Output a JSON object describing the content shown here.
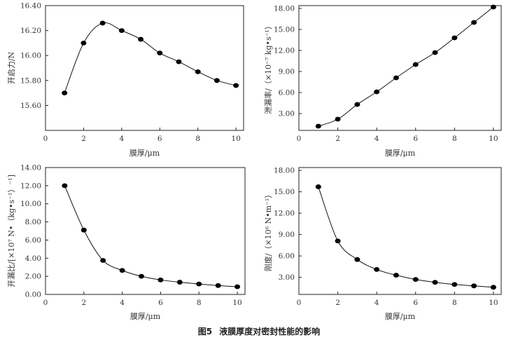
{
  "caption": {
    "number": "图5",
    "text": "液膜厚度对密封性能的影响"
  },
  "chart_data": [
    {
      "type": "line",
      "xlabel": "膜厚/μm",
      "ylabel": "开启力/N",
      "xlim": [
        0,
        10.4
      ],
      "ylim": [
        15.4,
        16.4
      ],
      "xticks": [
        0,
        2,
        4,
        6,
        8,
        10
      ],
      "xtick_labels": [
        "0",
        "2",
        "4",
        "6",
        "8",
        "10"
      ],
      "yticks": [
        15.6,
        15.8,
        16.0,
        16.2,
        16.4
      ],
      "ytick_labels": [
        "15.60",
        "15.80",
        "16.00",
        "16.20",
        "16.40"
      ],
      "x": [
        1,
        2,
        3,
        4,
        5,
        6,
        7,
        8,
        9,
        10
      ],
      "y": [
        15.7,
        16.1,
        16.26,
        16.2,
        16.13,
        16.02,
        15.95,
        15.87,
        15.8,
        15.76
      ]
    },
    {
      "type": "line",
      "xlabel": "膜厚/μm",
      "ylabel": "泄漏率/（×10⁻⁷ kg•s⁻¹）",
      "xlim": [
        0,
        10.4
      ],
      "ylim": [
        0.6,
        18.4
      ],
      "xticks": [
        0,
        2,
        4,
        6,
        8,
        10
      ],
      "xtick_labels": [
        "0",
        "2",
        "4",
        "6",
        "8",
        "10"
      ],
      "yticks": [
        3,
        6,
        9,
        12,
        15,
        18
      ],
      "ytick_labels": [
        "3.00",
        "6.00",
        "9.00",
        "12.00",
        "15.00",
        "18.00"
      ],
      "x": [
        1,
        2,
        3,
        4,
        5,
        6,
        7,
        8,
        9,
        10
      ],
      "y": [
        1.2,
        2.2,
        4.3,
        6.1,
        8.1,
        10.0,
        11.7,
        13.8,
        16.0,
        18.2
      ]
    },
    {
      "type": "line",
      "xlabel": "膜厚/μm",
      "ylabel": "开漏比/[×10⁷ N•（kg•s⁻¹）⁻¹]",
      "xlim": [
        0,
        10.4
      ],
      "ylim": [
        0,
        14
      ],
      "xticks": [
        0,
        2,
        4,
        6,
        8,
        10
      ],
      "xtick_labels": [
        "0",
        "2",
        "4",
        "6",
        "8",
        "10"
      ],
      "yticks": [
        0,
        2,
        4,
        6,
        8,
        10,
        12,
        14
      ],
      "ytick_labels": [
        "0.00",
        "2.00",
        "4.00",
        "6.00",
        "8.00",
        "10.00",
        "12.00",
        "14.00"
      ],
      "x": [
        1,
        2,
        3,
        4,
        5,
        6,
        7,
        8,
        9,
        10
      ],
      "y": [
        12.0,
        7.1,
        3.75,
        2.65,
        2.0,
        1.6,
        1.35,
        1.15,
        0.98,
        0.85
      ]
    },
    {
      "type": "line",
      "xlabel": "膜厚/μm",
      "ylabel": "刚度/（×10⁶ N•m⁻¹）",
      "xlim": [
        0,
        10.4
      ],
      "ylim": [
        0.6,
        18.4
      ],
      "xticks": [
        0,
        2,
        4,
        6,
        8,
        10
      ],
      "xtick_labels": [
        "0",
        "2",
        "4",
        "6",
        "8",
        "10"
      ],
      "yticks": [
        3,
        6,
        9,
        12,
        15,
        18
      ],
      "ytick_labels": [
        "3.00",
        "6.00",
        "9.00",
        "12.00",
        "15.00",
        "18.00"
      ],
      "x": [
        1,
        2,
        3,
        4,
        5,
        6,
        7,
        8,
        9,
        10
      ],
      "y": [
        15.7,
        8.1,
        5.5,
        4.1,
        3.3,
        2.7,
        2.3,
        2.0,
        1.8,
        1.6
      ]
    }
  ]
}
